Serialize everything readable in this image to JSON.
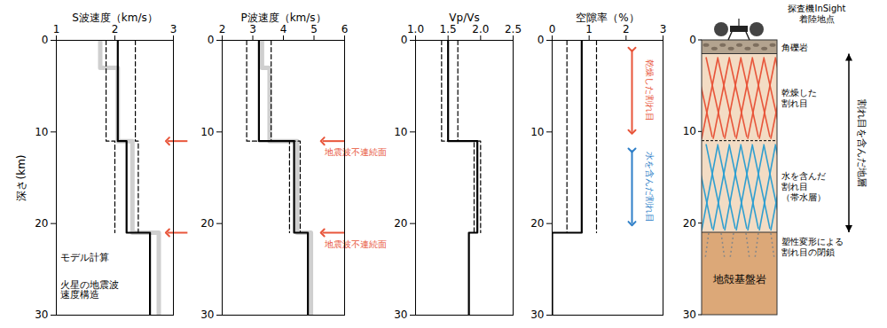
{
  "chart_data": [
    {
      "type": "line",
      "xlabel": "S波速度（km/s）",
      "ylabel": "深さ(km)",
      "xlim": [
        1,
        3
      ],
      "xticks": [
        1,
        2,
        3
      ],
      "ylim": [
        30,
        0
      ],
      "yticks": [
        0,
        10,
        20,
        30
      ],
      "series": [
        {
          "name": "火星の地震波\n速度構造",
          "color": "#bbbbbb",
          "line_style": "solid",
          "depth": [
            0,
            3,
            3,
            11,
            11,
            21,
            21,
            30
          ],
          "values": [
            1.75,
            1.75,
            2.05,
            2.05,
            2.3,
            2.3,
            2.75,
            2.75
          ]
        },
        {
          "name": "モデル計算",
          "color": "#000000",
          "line_style": "solid",
          "depth": [
            0,
            11,
            11,
            21,
            21,
            30
          ],
          "values": [
            2.05,
            2.05,
            2.2,
            2.2,
            2.6,
            2.6
          ]
        },
        {
          "color": "#000000",
          "line_style": "dashed",
          "depth": [
            0,
            11,
            11,
            21
          ],
          "values": [
            1.85,
            1.85,
            2.0,
            2.0
          ]
        },
        {
          "color": "#000000",
          "line_style": "dashed",
          "depth": [
            0,
            11,
            11,
            21
          ],
          "values": [
            2.35,
            2.35,
            2.4,
            2.4
          ]
        }
      ],
      "discontinuities": [
        {
          "depth": 11,
          "color": "#e8553a"
        },
        {
          "depth": 21,
          "color": "#e8553a"
        }
      ]
    },
    {
      "type": "line",
      "xlabel": "P波速度（km/s）",
      "xlim": [
        2,
        6
      ],
      "xticks": [
        2,
        3,
        4,
        5,
        6
      ],
      "ylim": [
        30,
        0
      ],
      "yticks": [
        0,
        10,
        20,
        30
      ],
      "series": [
        {
          "color": "#bbbbbb",
          "line_style": "solid",
          "depth": [
            0,
            3,
            3,
            11,
            11,
            21,
            21,
            30
          ],
          "values": [
            3.3,
            3.3,
            3.55,
            3.55,
            4.45,
            4.45,
            4.9,
            4.9
          ]
        },
        {
          "color": "#000000",
          "line_style": "solid",
          "depth": [
            0,
            11,
            11,
            21,
            21,
            30
          ],
          "values": [
            3.2,
            3.2,
            4.35,
            4.35,
            4.8,
            4.8
          ]
        },
        {
          "color": "#000000",
          "line_style": "dashed",
          "depth": [
            0,
            11,
            11,
            21
          ],
          "values": [
            2.8,
            2.8,
            4.2,
            4.2
          ]
        },
        {
          "color": "#000000",
          "line_style": "dashed",
          "depth": [
            0,
            11,
            11,
            21
          ],
          "values": [
            3.6,
            3.6,
            4.55,
            4.55
          ]
        }
      ],
      "discontinuities": [
        {
          "depth": 11,
          "color": "#e8553a",
          "label": "地震波不連続面"
        },
        {
          "depth": 21,
          "color": "#e8553a",
          "label": "地震波不連続面"
        }
      ]
    },
    {
      "type": "line",
      "xlabel": "Vp/Vs",
      "xlim": [
        1,
        2.5
      ],
      "xticks": [
        {
          "value": 1,
          "label": "1.0"
        },
        1.5,
        {
          "value": 2,
          "label": "2.0"
        },
        2.5
      ],
      "ylim": [
        30,
        0
      ],
      "yticks": [
        0,
        10,
        20,
        30
      ],
      "series": [
        {
          "color": "#000000",
          "line_style": "solid",
          "depth": [
            0,
            11,
            11,
            21,
            21,
            30
          ],
          "values": [
            1.5,
            1.5,
            1.95,
            1.95,
            1.82,
            1.82
          ]
        },
        {
          "color": "#000000",
          "line_style": "dashed",
          "depth": [
            0,
            11,
            11,
            21
          ],
          "values": [
            1.4,
            1.4,
            1.9,
            1.9
          ]
        },
        {
          "color": "#000000",
          "line_style": "dashed",
          "depth": [
            0,
            11,
            11,
            21
          ],
          "values": [
            1.65,
            1.65,
            2.0,
            2.0
          ]
        }
      ]
    },
    {
      "type": "line",
      "xlabel": "空隙率（%）",
      "xlim": [
        0,
        3
      ],
      "xticks": [
        0,
        1,
        2,
        3
      ],
      "ylim": [
        30,
        0
      ],
      "yticks": [
        0,
        10,
        20,
        30
      ],
      "series": [
        {
          "color": "#000000",
          "line_style": "solid",
          "depth": [
            0,
            21,
            21,
            30
          ],
          "values": [
            0.8,
            0.8,
            0,
            0
          ]
        },
        {
          "color": "#000000",
          "line_style": "dashed",
          "depth": [
            0,
            21
          ],
          "values": [
            0.4,
            0.4
          ]
        },
        {
          "color": "#000000",
          "line_style": "dashed",
          "depth": [
            0,
            21
          ],
          "values": [
            1.2,
            1.2
          ]
        }
      ],
      "zones": [
        {
          "label": "乾燥した割れ目",
          "from": 1,
          "to": 10,
          "color": "#e8553a"
        },
        {
          "label": "水を含んだ割れ目",
          "from": 12,
          "to": 20,
          "color": "#2f7fc8"
        }
      ]
    }
  ],
  "diagram": {
    "lander_label": "探査機InSight\n着陸地点",
    "ylim": [
      30,
      0
    ],
    "yticks": [
      0,
      10,
      20,
      30
    ],
    "layers": [
      {
        "label": "角礫岩",
        "top": 0,
        "bottom": 1.5,
        "color": "#b3a38f"
      },
      {
        "top": 1.5,
        "bottom": 21,
        "color": "#f3dcc4"
      },
      {
        "label": "地殻基盤岩",
        "top": 21,
        "bottom": 30,
        "color": "#dca878"
      }
    ],
    "fracture_zones": [
      {
        "label": "乾燥した\n割れ目",
        "top": 1.5,
        "bottom": 11,
        "color": "#e8553a",
        "line_style": "solid"
      },
      {
        "label": "水を含んだ\n割れ目\n（帯水層）",
        "top": 11,
        "bottom": 21,
        "color": "#2f9fd0",
        "line_style": "solid"
      },
      {
        "label": "塑性変形による\n割れ目の閉鎖",
        "top": 21,
        "bottom": 24,
        "color": "#888888",
        "line_style": "dotted"
      }
    ],
    "boundaries": [
      {
        "depth": 11,
        "line_style": "dashed"
      }
    ],
    "bracket": {
      "label": "割れ目を含んだ地層",
      "top": 1.5,
      "bottom": 21
    }
  }
}
